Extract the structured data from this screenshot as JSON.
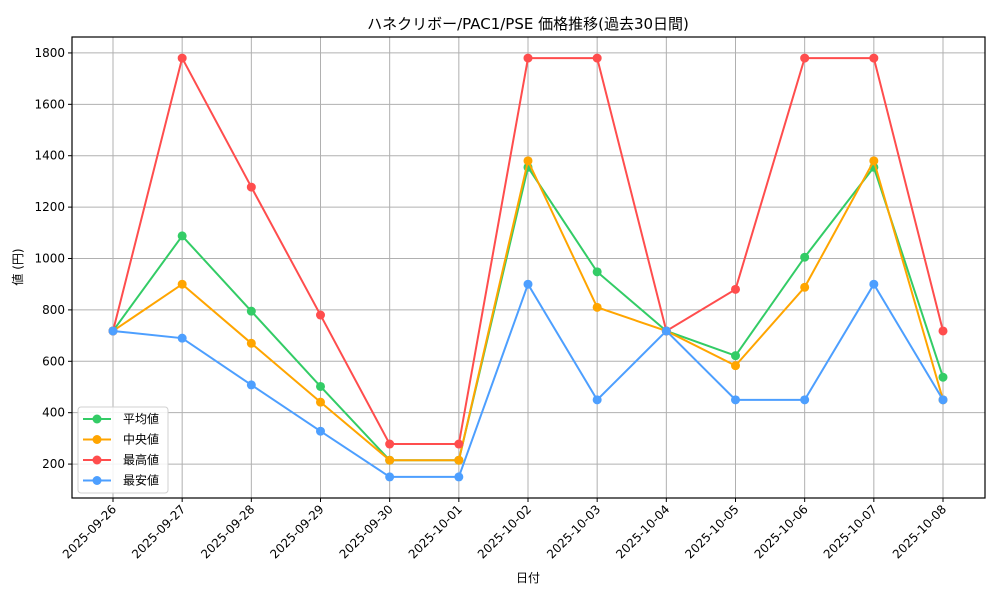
{
  "chart_data": {
    "type": "line",
    "title": "ハネクリボー/PAC1/PSE 価格推移(過去30日間)",
    "xlabel": "日付",
    "ylabel": "値 (円)",
    "categories": [
      "2025-09-26",
      "2025-09-27",
      "2025-09-28",
      "2025-09-29",
      "2025-09-30",
      "2025-10-01",
      "2025-10-02",
      "2025-10-03",
      "2025-10-04",
      "2025-10-05",
      "2025-10-06",
      "2025-10-07",
      "2025-10-08"
    ],
    "series": [
      {
        "name": "平均値",
        "color": "#33cc66",
        "values": [
          718,
          1088,
          795,
          502,
          215,
          215,
          1355,
          948,
          718,
          622,
          1005,
          1355,
          538
        ]
      },
      {
        "name": "中央値",
        "color": "#ffa500",
        "values": [
          718,
          900,
          670,
          441,
          215,
          215,
          1380,
          810,
          718,
          583,
          888,
          1380,
          450
        ]
      },
      {
        "name": "最高値",
        "color": "#ff4d4d",
        "values": [
          718,
          1780,
          1278,
          780,
          278,
          278,
          1780,
          1780,
          718,
          880,
          1780,
          1780,
          718
        ]
      },
      {
        "name": "最安値",
        "color": "#4d9fff",
        "values": [
          718,
          690,
          508,
          328,
          150,
          150,
          900,
          450,
          718,
          450,
          450,
          900,
          450
        ]
      }
    ],
    "yticks": [
      200,
      400,
      600,
      800,
      1000,
      1200,
      1400,
      1600,
      1800
    ],
    "ylim": [
      68,
      1862
    ],
    "grid": true,
    "legend_position": "lower left",
    "marker": "circle"
  }
}
